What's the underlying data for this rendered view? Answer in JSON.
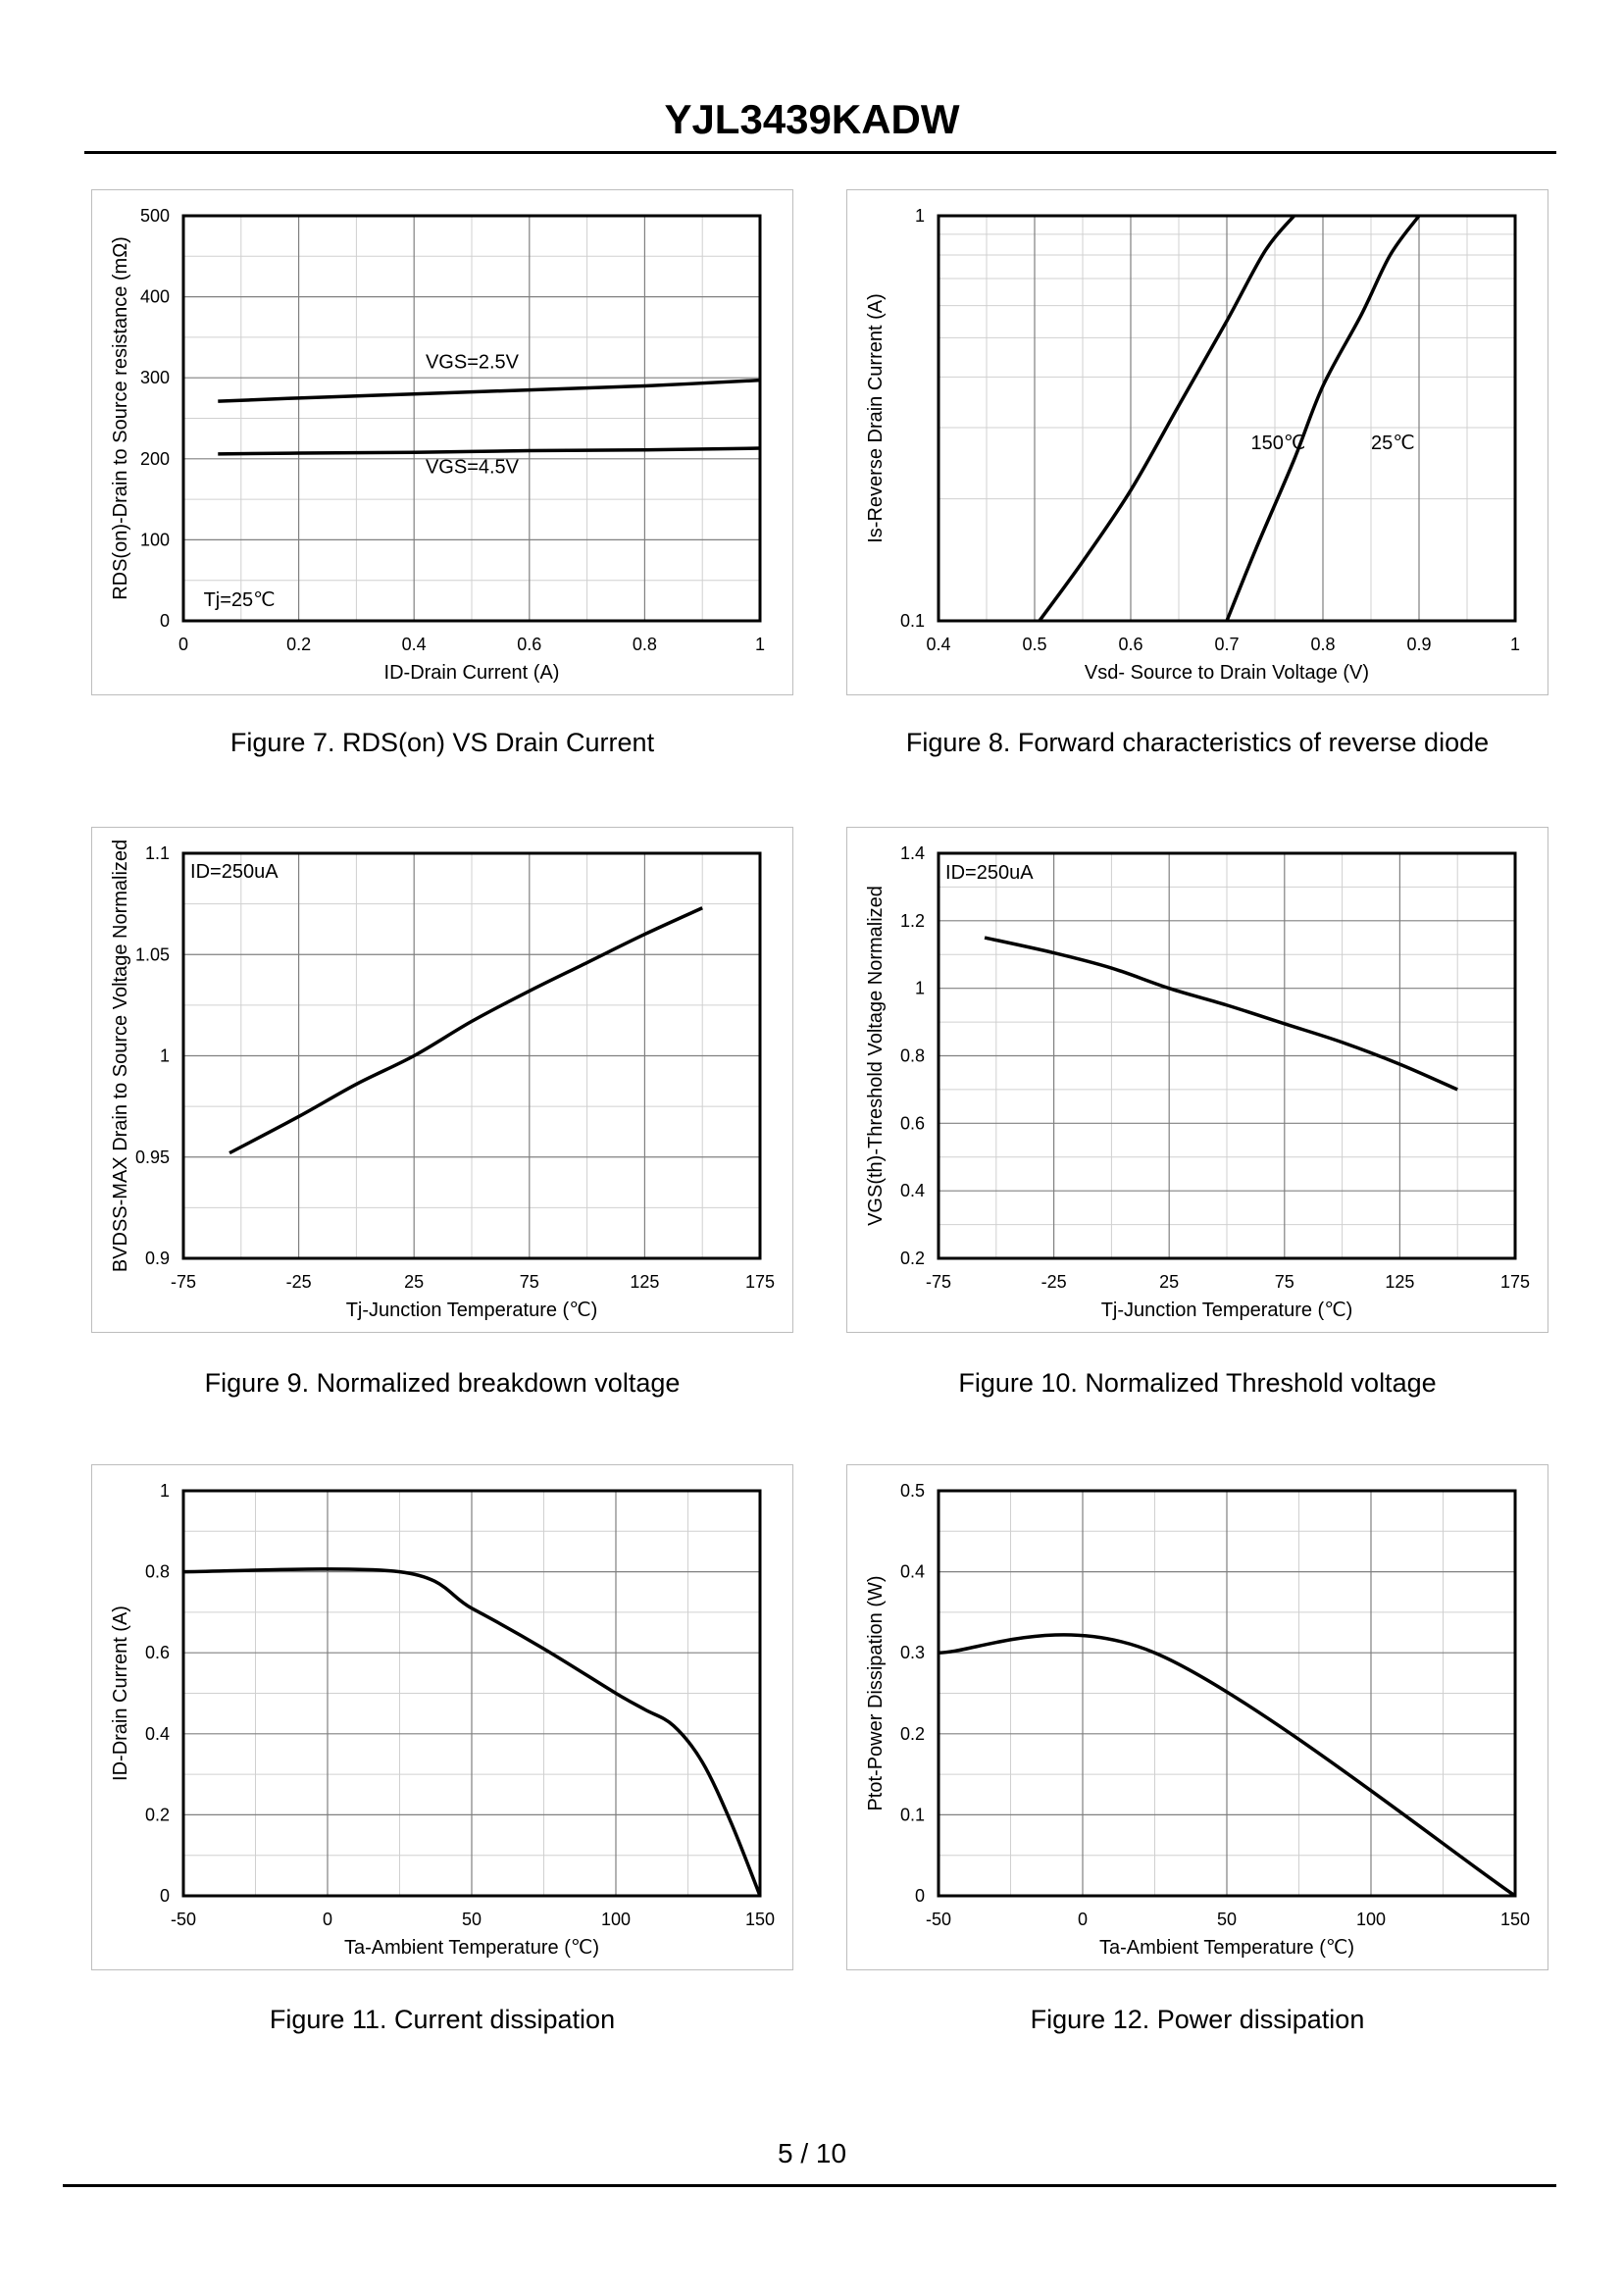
{
  "page": {
    "title": "YJL3439KADW",
    "footer": "5 / 10"
  },
  "chart_data": [
    {
      "id": "fig7",
      "type": "line",
      "caption": "Figure 7.  RDS(on) VS Drain Current",
      "ylabel": "RDS(on)-Drain to Source resistance (mΩ)",
      "xlabel": "ID-Drain Current (A)",
      "xlim": [
        0,
        1
      ],
      "ylim": [
        0,
        500
      ],
      "xticks": [
        0,
        0.2,
        0.4,
        0.6,
        0.8,
        1
      ],
      "xticklabels": [
        "0",
        "0.2",
        "0.4",
        "0.6",
        "0.8",
        "1"
      ],
      "yticks": [
        0,
        100,
        200,
        300,
        400,
        500
      ],
      "yticklabels": [
        "0",
        "100",
        "200",
        "300",
        "400",
        "500"
      ],
      "xminor": 2,
      "yminor": 2,
      "series": [
        {
          "name": "VGS=2.5V",
          "x": [
            0.06,
            0.2,
            0.4,
            0.6,
            0.8,
            1.0
          ],
          "y": [
            271,
            275,
            280,
            285,
            290,
            297
          ]
        },
        {
          "name": "VGS=4.5V",
          "x": [
            0.06,
            0.2,
            0.4,
            0.6,
            0.8,
            1.0
          ],
          "y": [
            206,
            207,
            208,
            210,
            211,
            213
          ]
        }
      ],
      "annotations": [
        {
          "text": "VGS=2.5V",
          "x": 0.42,
          "y": 312
        },
        {
          "text": "VGS=4.5V",
          "x": 0.42,
          "y": 182
        },
        {
          "text": "Tj=25℃",
          "x": 0.035,
          "y": 18
        }
      ]
    },
    {
      "id": "fig8",
      "type": "line",
      "caption": "Figure 8.  Forward characteristics of reverse diode",
      "ylabel": "Is-Reverse  Drain Current (A)",
      "xlabel": "Vsd- Source to Drain Voltage (V)",
      "xlim": [
        0.4,
        1
      ],
      "ylim": [
        0.1,
        1
      ],
      "yscale": "log",
      "xticks": [
        0.4,
        0.5,
        0.6,
        0.7,
        0.8,
        0.9,
        1
      ],
      "xticklabels": [
        "0.4",
        "0.5",
        "0.6",
        "0.7",
        "0.8",
        "0.9",
        "1"
      ],
      "yticks": [
        0.1,
        1
      ],
      "yticklabels": [
        "0.1",
        "1"
      ],
      "xminor": 2,
      "yminorvals": [
        0.2,
        0.3,
        0.4,
        0.5,
        0.6,
        0.7,
        0.8,
        0.9
      ],
      "series": [
        {
          "name": "150℃",
          "x": [
            0.505,
            0.55,
            0.6,
            0.65,
            0.7,
            0.74,
            0.77
          ],
          "y": [
            0.1,
            0.14,
            0.21,
            0.34,
            0.55,
            0.82,
            1.0
          ]
        },
        {
          "name": "25℃",
          "x": [
            0.7,
            0.73,
            0.77,
            0.8,
            0.84,
            0.87,
            0.9
          ],
          "y": [
            0.1,
            0.15,
            0.25,
            0.38,
            0.57,
            0.8,
            1.0
          ]
        }
      ],
      "annotations": [
        {
          "text": "150℃",
          "x": 0.725,
          "y": 0.265
        },
        {
          "text": "25℃",
          "x": 0.85,
          "y": 0.265
        }
      ]
    },
    {
      "id": "fig9",
      "type": "line",
      "caption": "Figure 9.  Normalized breakdown voltage",
      "ylabel": "BVDSS-MAX Drain to Source Voltage Normalized",
      "xlabel": "Tj-Junction  Temperature (℃)",
      "xlim": [
        -75,
        175
      ],
      "ylim": [
        0.9,
        1.1
      ],
      "xticks": [
        -75,
        -25,
        25,
        75,
        125,
        175
      ],
      "xticklabels": [
        "-75",
        "-25",
        "25",
        "75",
        "125",
        "175"
      ],
      "yticks": [
        0.9,
        0.95,
        1,
        1.05,
        1.1
      ],
      "yticklabels": [
        "0.9",
        "0.95",
        "1",
        "1.05",
        "1.1"
      ],
      "xminor": 2,
      "yminor": 2,
      "series": [
        {
          "name": "BVDSS",
          "x": [
            -55,
            -25,
            0,
            25,
            50,
            75,
            100,
            125,
            150
          ],
          "y": [
            0.952,
            0.97,
            0.986,
            1.0,
            1.017,
            1.032,
            1.046,
            1.06,
            1.073
          ]
        }
      ],
      "annotations": [
        {
          "text": "ID=250uA",
          "x": -72,
          "y": 1.088
        }
      ]
    },
    {
      "id": "fig10",
      "type": "line",
      "caption": "Figure 10.  Normalized Threshold voltage",
      "ylabel": "VGS(th)-Threshold  Voltage Normalized",
      "xlabel": "Tj-Junction  Temperature (℃)",
      "xlim": [
        -75,
        175
      ],
      "ylim": [
        0.2,
        1.4
      ],
      "xticks": [
        -75,
        -25,
        25,
        75,
        125,
        175
      ],
      "xticklabels": [
        "-75",
        "-25",
        "25",
        "75",
        "125",
        "175"
      ],
      "yticks": [
        0.2,
        0.4,
        0.6,
        0.8,
        1,
        1.2,
        1.4
      ],
      "yticklabels": [
        "0.2",
        "0.4",
        "0.6",
        "0.8",
        "1",
        "1.2",
        "1.4"
      ],
      "xminor": 2,
      "yminor": 2,
      "series": [
        {
          "name": "VGS(th)",
          "x": [
            -55,
            -25,
            0,
            25,
            50,
            75,
            100,
            125,
            150
          ],
          "y": [
            1.15,
            1.105,
            1.06,
            1.0,
            0.95,
            0.895,
            0.84,
            0.775,
            0.7
          ]
        }
      ],
      "annotations": [
        {
          "text": "ID=250uA",
          "x": -72,
          "y": 1.325
        }
      ]
    },
    {
      "id": "fig11",
      "type": "line",
      "caption": "Figure 11.  Current dissipation",
      "ylabel": "ID-Drain Current (A)",
      "xlabel": "Ta-Ambient Temperature (℃)",
      "xlim": [
        -50,
        150
      ],
      "ylim": [
        0,
        1
      ],
      "xticks": [
        -50,
        0,
        50,
        100,
        150
      ],
      "xticklabels": [
        "-50",
        "0",
        "50",
        "100",
        "150"
      ],
      "yticks": [
        0,
        0.2,
        0.4,
        0.6,
        0.8,
        1
      ],
      "yticklabels": [
        "0",
        "0.2",
        "0.4",
        "0.6",
        "0.8",
        "1"
      ],
      "xminor": 2,
      "yminor": 2,
      "series": [
        {
          "name": "ID",
          "x": [
            -50,
            25,
            50,
            75,
            100,
            110,
            120,
            130,
            140,
            150
          ],
          "y": [
            0.8,
            0.8,
            0.71,
            0.61,
            0.5,
            0.46,
            0.42,
            0.33,
            0.18,
            0.0
          ]
        }
      ],
      "annotations": []
    },
    {
      "id": "fig12",
      "type": "line",
      "caption": "Figure 12.  Power dissipation",
      "ylabel": "Ptot-Power Dissipation (W)",
      "xlabel": "Ta-Ambient Temperature (℃)",
      "xlim": [
        -50,
        150
      ],
      "ylim": [
        0,
        0.5
      ],
      "xticks": [
        -50,
        0,
        50,
        100,
        150
      ],
      "xticklabels": [
        "-50",
        "0",
        "50",
        "100",
        "150"
      ],
      "yticks": [
        0,
        0.1,
        0.2,
        0.3,
        0.4,
        0.5
      ],
      "yticklabels": [
        "0",
        "0.1",
        "0.2",
        "0.3",
        "0.4",
        "0.5"
      ],
      "xminor": 2,
      "yminor": 2,
      "series": [
        {
          "name": "Ptot",
          "x": [
            -50,
            25,
            150
          ],
          "y": [
            0.3,
            0.3,
            0.0
          ]
        }
      ],
      "annotations": []
    }
  ]
}
